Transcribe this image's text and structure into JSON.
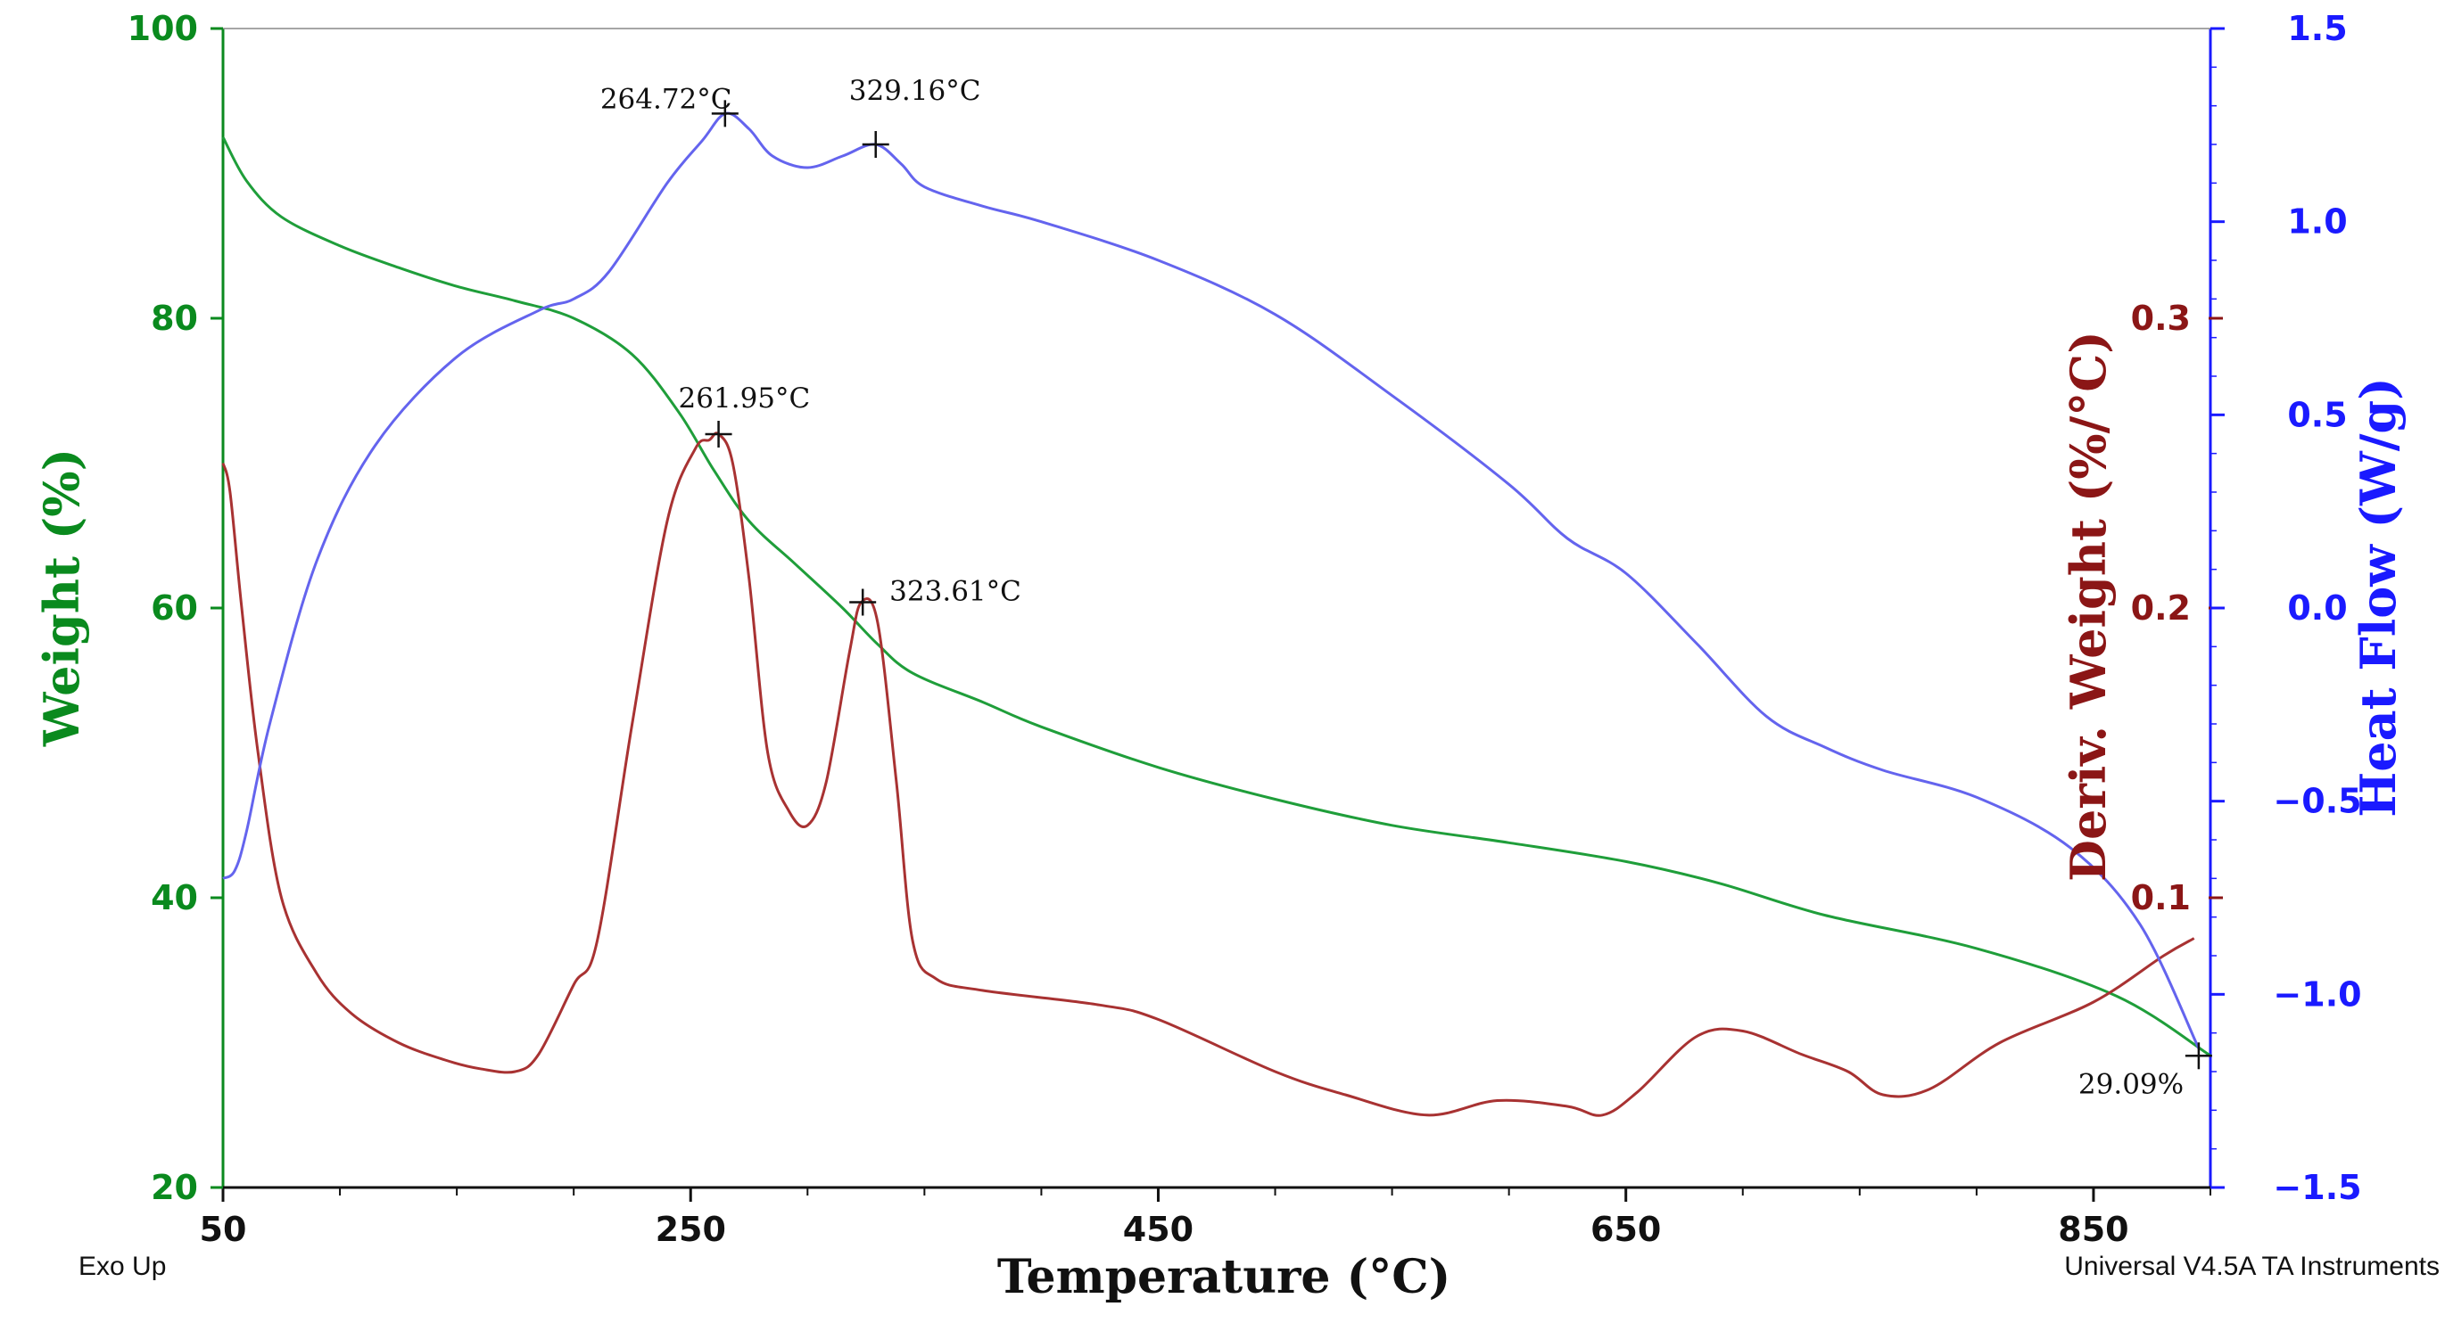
{
  "chart_data": {
    "type": "line",
    "x": {
      "label": "Temperature (°C)",
      "range": [
        50,
        900
      ],
      "ticks": [
        50,
        250,
        450,
        650,
        850
      ],
      "tick_labels": [
        "50",
        "250",
        "450",
        "650",
        "850"
      ]
    },
    "y_left": {
      "label": "Weight (%)",
      "range": [
        20,
        100
      ],
      "ticks": [
        20,
        40,
        60,
        80,
        100
      ],
      "tick_labels": [
        "20",
        "40",
        "60",
        "80",
        "100"
      ],
      "color": "#0a8a1e"
    },
    "y_deriv": {
      "label": "Deriv. Weight (%/°C)",
      "range": [
        0.0,
        0.4
      ],
      "ticks": [
        0.1,
        0.2,
        0.3
      ],
      "tick_labels": [
        "0.1",
        "0.2",
        "0.3"
      ],
      "color": "#8b1616"
    },
    "y_heat": {
      "label": "Heat Flow (W/g)",
      "range": [
        -1.5,
        1.5
      ],
      "ticks": [
        -1.5,
        -1.0,
        -0.5,
        0.0,
        0.5,
        1.0,
        1.5
      ],
      "tick_labels": [
        "−1.5",
        "−1.0",
        "−0.5",
        "0.0",
        "0.5",
        "1.0",
        "1.5"
      ],
      "color": "#1a1aff"
    },
    "series": [
      {
        "name": "Weight",
        "axis": "y_left",
        "color": "#1f9e3a",
        "points": [
          [
            50,
            92.5
          ],
          [
            60,
            89.5
          ],
          [
            75,
            87.0
          ],
          [
            100,
            85.0
          ],
          [
            125,
            83.5
          ],
          [
            150,
            82.2
          ],
          [
            175,
            81.2
          ],
          [
            200,
            80.0
          ],
          [
            225,
            77.5
          ],
          [
            245,
            73.5
          ],
          [
            260,
            69.5
          ],
          [
            275,
            66.0
          ],
          [
            295,
            63.0
          ],
          [
            315,
            60.0
          ],
          [
            330,
            57.5
          ],
          [
            345,
            55.5
          ],
          [
            375,
            53.5
          ],
          [
            400,
            51.8
          ],
          [
            450,
            49.0
          ],
          [
            500,
            46.8
          ],
          [
            550,
            45.0
          ],
          [
            600,
            43.8
          ],
          [
            650,
            42.5
          ],
          [
            690,
            41.0
          ],
          [
            735,
            38.8
          ],
          [
            800,
            36.5
          ],
          [
            860,
            33.2
          ],
          [
            900,
            29.1
          ]
        ]
      },
      {
        "name": "Deriv. Weight",
        "axis": "y_deriv",
        "color": "#a83232",
        "points": [
          [
            50,
            0.25
          ],
          [
            53,
            0.24
          ],
          [
            58,
            0.2
          ],
          [
            65,
            0.15
          ],
          [
            75,
            0.1
          ],
          [
            90,
            0.074
          ],
          [
            105,
            0.06
          ],
          [
            125,
            0.05
          ],
          [
            145,
            0.044
          ],
          [
            160,
            0.041
          ],
          [
            175,
            0.04
          ],
          [
            185,
            0.046
          ],
          [
            200,
            0.07
          ],
          [
            210,
            0.085
          ],
          [
            225,
            0.16
          ],
          [
            240,
            0.23
          ],
          [
            252,
            0.255
          ],
          [
            258,
            0.258
          ],
          [
            262,
            0.26
          ],
          [
            268,
            0.25
          ],
          [
            275,
            0.21
          ],
          [
            283,
            0.15
          ],
          [
            292,
            0.13
          ],
          [
            300,
            0.125
          ],
          [
            308,
            0.14
          ],
          [
            318,
            0.185
          ],
          [
            323,
            0.202
          ],
          [
            330,
            0.195
          ],
          [
            338,
            0.14
          ],
          [
            345,
            0.085
          ],
          [
            355,
            0.072
          ],
          [
            375,
            0.068
          ],
          [
            425,
            0.063
          ],
          [
            450,
            0.058
          ],
          [
            500,
            0.04
          ],
          [
            530,
            0.032
          ],
          [
            565,
            0.025
          ],
          [
            595,
            0.03
          ],
          [
            625,
            0.028
          ],
          [
            640,
            0.025
          ],
          [
            655,
            0.033
          ],
          [
            680,
            0.052
          ],
          [
            700,
            0.054
          ],
          [
            725,
            0.046
          ],
          [
            745,
            0.04
          ],
          [
            760,
            0.032
          ],
          [
            780,
            0.034
          ],
          [
            810,
            0.05
          ],
          [
            850,
            0.064
          ],
          [
            880,
            0.08
          ],
          [
            893,
            0.086
          ]
        ]
      },
      {
        "name": "Heat Flow",
        "axis": "y_heat",
        "color": "#6464ee",
        "points": [
          [
            50,
            -0.7
          ],
          [
            55,
            -0.68
          ],
          [
            60,
            -0.58
          ],
          [
            70,
            -0.3
          ],
          [
            90,
            0.12
          ],
          [
            115,
            0.42
          ],
          [
            150,
            0.65
          ],
          [
            185,
            0.77
          ],
          [
            200,
            0.8
          ],
          [
            215,
            0.87
          ],
          [
            240,
            1.1
          ],
          [
            255,
            1.21
          ],
          [
            265,
            1.28
          ],
          [
            275,
            1.24
          ],
          [
            285,
            1.17
          ],
          [
            300,
            1.14
          ],
          [
            315,
            1.17
          ],
          [
            329,
            1.2
          ],
          [
            340,
            1.15
          ],
          [
            350,
            1.09
          ],
          [
            375,
            1.04
          ],
          [
            400,
            1.0
          ],
          [
            450,
            0.9
          ],
          [
            500,
            0.76
          ],
          [
            550,
            0.55
          ],
          [
            600,
            0.32
          ],
          [
            625,
            0.18
          ],
          [
            650,
            0.09
          ],
          [
            680,
            -0.09
          ],
          [
            710,
            -0.28
          ],
          [
            735,
            -0.36
          ],
          [
            760,
            -0.42
          ],
          [
            800,
            -0.49
          ],
          [
            840,
            -0.62
          ],
          [
            870,
            -0.82
          ],
          [
            895,
            -1.14
          ]
        ]
      }
    ],
    "annotations": [
      {
        "series": "Heat Flow",
        "label": "264.72°C",
        "x": 264.72,
        "y": 1.28
      },
      {
        "series": "Heat Flow",
        "label": "329.16°C",
        "x": 329.16,
        "y": 1.2
      },
      {
        "series": "Deriv. Weight",
        "label": "261.95°C",
        "x": 261.95,
        "y": 0.26
      },
      {
        "series": "Deriv. Weight",
        "label": "323.61°C",
        "x": 323.61,
        "y": 0.202
      },
      {
        "series": "Weight",
        "label": "29.09%",
        "x": 895,
        "y": 29.09
      }
    ],
    "footer_left": "Exo Up",
    "footer_right": "Universal V4.5A TA Instruments"
  }
}
